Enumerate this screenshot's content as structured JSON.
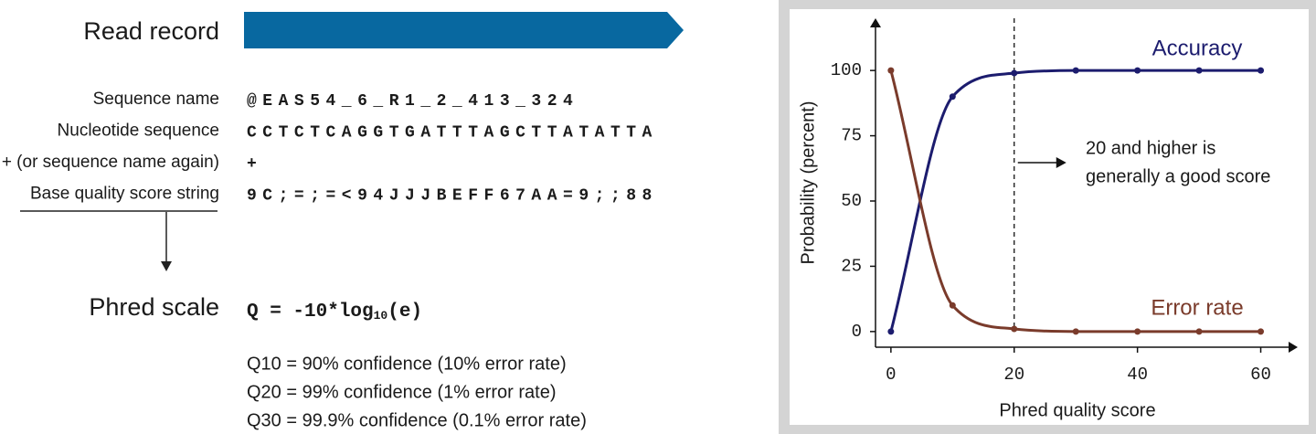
{
  "record": {
    "title": "Read record",
    "fields": [
      {
        "label": "Sequence name",
        "value": "@EAS54_6_R1_2_413_324"
      },
      {
        "label": "Nucleotide sequence",
        "value": "CCTCTCAGGTGATTTAGCTTATATTA"
      },
      {
        "label": "+ (or sequence name again)",
        "value": "+"
      },
      {
        "label": "Base quality score string",
        "value": "9C;=;=<94JJJBEFF67AA=9;;88"
      }
    ]
  },
  "phred": {
    "title": "Phred scale",
    "formula": [
      "Q = -10*log",
      "10",
      "(e)"
    ],
    "notes": [
      "Q10 = 90% confidence (10% error rate)",
      "Q20 = 99% confidence (1% error rate)",
      "Q30 = 99.9% confidence (0.1% error rate)"
    ]
  },
  "chart_data": {
    "type": "line",
    "xlabel": "Phred quality score",
    "ylabel": "Probability (percent)",
    "x": [
      0,
      10,
      20,
      30,
      40,
      50,
      60
    ],
    "series": [
      {
        "name": "Accuracy",
        "color": "#1c1c6e",
        "values": [
          0,
          90,
          99,
          100,
          100,
          100,
          100
        ]
      },
      {
        "name": "Error rate",
        "color": "#7a3b2b",
        "values": [
          100,
          10,
          1,
          0,
          0,
          0,
          0
        ]
      }
    ],
    "xlim": [
      -2.5,
      66
    ],
    "ylim": [
      -6,
      120
    ],
    "xticks": [
      0,
      20,
      40,
      60
    ],
    "yticks": [
      0,
      25,
      50,
      75,
      100
    ],
    "threshold": 20,
    "annotation": [
      "20 and higher is",
      "generally a good score"
    ]
  }
}
